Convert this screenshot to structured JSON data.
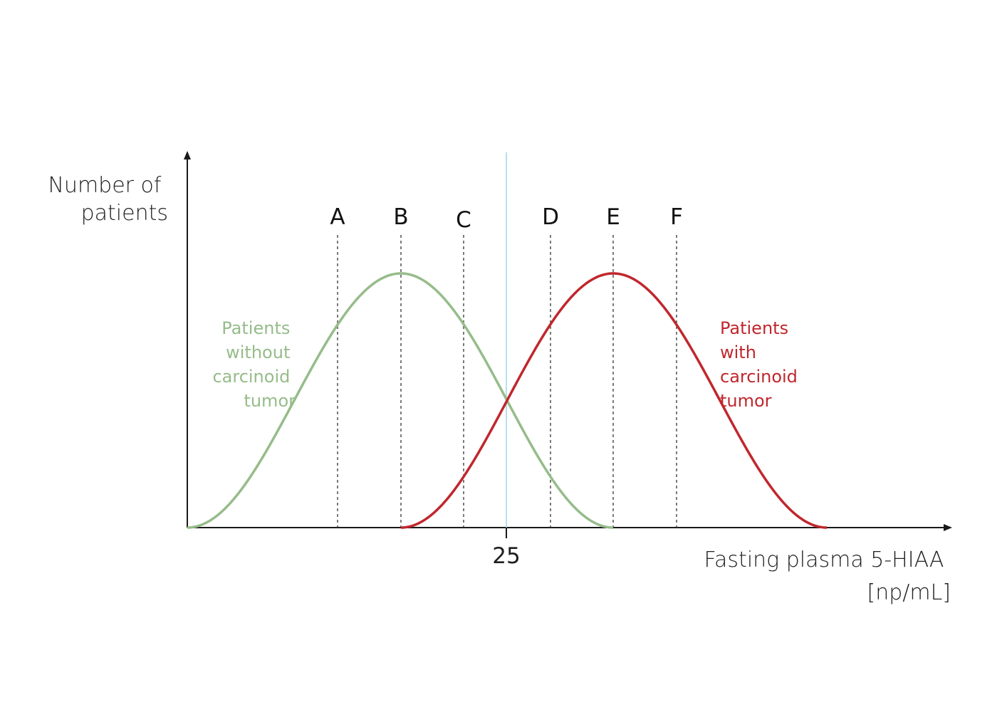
{
  "chart_data": {
    "type": "line",
    "ylabel": [
      "Number of",
      "patients"
    ],
    "xlabel": [
      "Fasting plasma 5-HIAA",
      "[np/mL]"
    ],
    "x_ticks": [
      "25"
    ],
    "cutoff_value": 25,
    "markers": [
      "A",
      "B",
      "C",
      "D",
      "E",
      "F"
    ],
    "series": [
      {
        "name": [
          "Patients",
          "without",
          "carcinoid",
          "tumor"
        ],
        "color": "#96bc8a",
        "shape": "bell curve, peaks at marker B"
      },
      {
        "name": [
          "Patients",
          "with",
          "carcinoid",
          "tumor"
        ],
        "color": "#c0272d",
        "shape": "bell curve, peaks at marker E"
      }
    ],
    "colors": {
      "axis": "#1a1a1a",
      "cutoff_line": "#9fd6e4",
      "marker_lines": "#333333"
    },
    "grid": false
  }
}
